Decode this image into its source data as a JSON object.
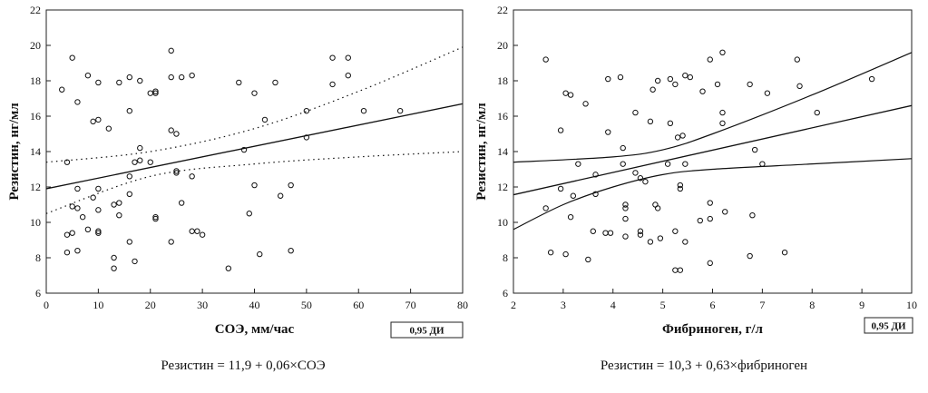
{
  "chart_data": [
    {
      "type": "scatter",
      "xlabel": "СОЭ, мм/час",
      "ylabel": "Резистин, нг/мл",
      "xlim": [
        0,
        80
      ],
      "ylim": [
        6,
        22
      ],
      "xticks": [
        "0",
        "10",
        "20",
        "30",
        "40",
        "50",
        "60",
        "70",
        "80"
      ],
      "yticks": [
        "6",
        "8",
        "10",
        "12",
        "14",
        "16",
        "18",
        "20",
        "22"
      ],
      "grid": false,
      "ci_label": "0,95 ДИ",
      "formula": "Резистин = 11,9 + 0,06×СОЭ",
      "regression": {
        "intercept": 11.9,
        "slope": 0.06,
        "x_range": [
          0,
          80
        ]
      },
      "ci_upper": {
        "x": [
          0,
          20,
          40,
          60,
          80
        ],
        "y": [
          13.4,
          14.0,
          15.3,
          17.4,
          19.9
        ]
      },
      "ci_lower": {
        "x": [
          0,
          20,
          40,
          60,
          80
        ],
        "y": [
          10.5,
          12.6,
          13.3,
          13.7,
          14.0
        ]
      },
      "points": [
        [
          3,
          17.5
        ],
        [
          5,
          19.3
        ],
        [
          8,
          18.3
        ],
        [
          10,
          17.9
        ],
        [
          14,
          17.9
        ],
        [
          16,
          18.2
        ],
        [
          18,
          18.0
        ],
        [
          20,
          17.3
        ],
        [
          21,
          17.4
        ],
        [
          21,
          17.3
        ],
        [
          24,
          19.7
        ],
        [
          24,
          18.2
        ],
        [
          26,
          18.2
        ],
        [
          28,
          18.3
        ],
        [
          37,
          17.9
        ],
        [
          40,
          17.3
        ],
        [
          44,
          17.9
        ],
        [
          55,
          19.3
        ],
        [
          58,
          19.3
        ],
        [
          55,
          17.8
        ],
        [
          58,
          18.3
        ],
        [
          6,
          16.8
        ],
        [
          9,
          15.7
        ],
        [
          10,
          15.8
        ],
        [
          12,
          15.3
        ],
        [
          16,
          16.3
        ],
        [
          18,
          14.2
        ],
        [
          24,
          15.2
        ],
        [
          25,
          15.0
        ],
        [
          38,
          14.1
        ],
        [
          42,
          15.8
        ],
        [
          50,
          16.3
        ],
        [
          50,
          14.8
        ],
        [
          61,
          16.3
        ],
        [
          68,
          16.3
        ],
        [
          4,
          13.4
        ],
        [
          17,
          13.4
        ],
        [
          18,
          13.5
        ],
        [
          20,
          13.4
        ],
        [
          25,
          12.9
        ],
        [
          25,
          12.8
        ],
        [
          28,
          12.6
        ],
        [
          40,
          12.1
        ],
        [
          45,
          11.5
        ],
        [
          47,
          12.1
        ],
        [
          6,
          11.9
        ],
        [
          10,
          11.9
        ],
        [
          16,
          12.6
        ],
        [
          16,
          11.6
        ],
        [
          5,
          10.9
        ],
        [
          6,
          10.8
        ],
        [
          9,
          11.4
        ],
        [
          7,
          10.3
        ],
        [
          10,
          10.7
        ],
        [
          13,
          11.0
        ],
        [
          14,
          11.1
        ],
        [
          21,
          10.3
        ],
        [
          21,
          10.2
        ],
        [
          26,
          11.1
        ],
        [
          39,
          10.5
        ],
        [
          4,
          9.3
        ],
        [
          5,
          9.4
        ],
        [
          8,
          9.6
        ],
        [
          10,
          9.5
        ],
        [
          10,
          9.4
        ],
        [
          14,
          10.4
        ],
        [
          16,
          8.9
        ],
        [
          24,
          8.9
        ],
        [
          28,
          9.5
        ],
        [
          29,
          9.5
        ],
        [
          30,
          9.3
        ],
        [
          4,
          8.3
        ],
        [
          6,
          8.4
        ],
        [
          13,
          8.0
        ],
        [
          17,
          7.8
        ],
        [
          13,
          7.4
        ],
        [
          35,
          7.4
        ],
        [
          41,
          8.2
        ],
        [
          47,
          8.4
        ]
      ]
    },
    {
      "type": "scatter",
      "xlabel": "Фибриноген, г/л",
      "ylabel": "Резистин, нг/мл",
      "xlim": [
        2,
        10
      ],
      "ylim": [
        6,
        22
      ],
      "xticks": [
        "2",
        "3",
        "4",
        "5",
        "6",
        "7",
        "8",
        "9",
        "10"
      ],
      "yticks": [
        "6",
        "8",
        "10",
        "12",
        "14",
        "16",
        "18",
        "20",
        "22"
      ],
      "grid": false,
      "ci_label": "0,95 ДИ",
      "formula": "Резистин = 10,3 + 0,63×фибриноген",
      "regression": {
        "intercept": 10.3,
        "slope": 0.63,
        "x_range": [
          2,
          10
        ]
      },
      "ci_upper": {
        "x": [
          2,
          4,
          5,
          6,
          8,
          10
        ],
        "y": [
          13.4,
          13.7,
          14.1,
          15.0,
          17.2,
          19.6
        ]
      },
      "ci_lower": {
        "x": [
          2,
          3,
          4,
          5,
          6,
          8,
          10
        ],
        "y": [
          9.6,
          11.0,
          12.0,
          12.7,
          13.0,
          13.3,
          13.6
        ]
      },
      "points": [
        [
          2.65,
          19.2
        ],
        [
          3.05,
          17.3
        ],
        [
          3.15,
          17.2
        ],
        [
          3.45,
          16.7
        ],
        [
          3.9,
          18.1
        ],
        [
          4.15,
          18.2
        ],
        [
          4.8,
          17.5
        ],
        [
          4.9,
          18.0
        ],
        [
          5.15,
          18.1
        ],
        [
          5.25,
          17.8
        ],
        [
          5.45,
          18.3
        ],
        [
          5.55,
          18.2
        ],
        [
          5.95,
          19.2
        ],
        [
          6.2,
          19.6
        ],
        [
          6.1,
          17.8
        ],
        [
          6.75,
          17.8
        ],
        [
          7.1,
          17.3
        ],
        [
          7.7,
          19.2
        ],
        [
          7.75,
          17.7
        ],
        [
          9.2,
          18.1
        ],
        [
          2.95,
          15.2
        ],
        [
          3.9,
          15.1
        ],
        [
          4.45,
          16.2
        ],
        [
          4.75,
          15.7
        ],
        [
          5.15,
          15.6
        ],
        [
          5.3,
          14.8
        ],
        [
          5.4,
          14.9
        ],
        [
          5.8,
          17.4
        ],
        [
          6.2,
          16.2
        ],
        [
          6.2,
          15.6
        ],
        [
          8.1,
          16.2
        ],
        [
          6.85,
          14.1
        ],
        [
          3.3,
          13.3
        ],
        [
          3.65,
          12.7
        ],
        [
          4.2,
          13.3
        ],
        [
          4.2,
          14.2
        ],
        [
          4.45,
          12.8
        ],
        [
          4.55,
          12.5
        ],
        [
          5.1,
          13.3
        ],
        [
          5.35,
          12.1
        ],
        [
          5.35,
          11.9
        ],
        [
          5.45,
          13.3
        ],
        [
          7.0,
          13.3
        ],
        [
          2.95,
          11.9
        ],
        [
          3.2,
          11.5
        ],
        [
          3.65,
          11.6
        ],
        [
          4.25,
          11.0
        ],
        [
          4.25,
          10.8
        ],
        [
          4.25,
          10.2
        ],
        [
          4.65,
          12.3
        ],
        [
          4.85,
          11.0
        ],
        [
          4.9,
          10.8
        ],
        [
          5.75,
          10.1
        ],
        [
          5.95,
          11.1
        ],
        [
          5.95,
          10.2
        ],
        [
          6.25,
          10.6
        ],
        [
          6.8,
          10.4
        ],
        [
          2.65,
          10.8
        ],
        [
          3.15,
          10.3
        ],
        [
          3.6,
          9.5
        ],
        [
          3.85,
          9.4
        ],
        [
          3.95,
          9.4
        ],
        [
          4.25,
          9.2
        ],
        [
          4.55,
          9.5
        ],
        [
          4.55,
          9.3
        ],
        [
          4.75,
          8.9
        ],
        [
          4.95,
          9.1
        ],
        [
          5.25,
          9.5
        ],
        [
          5.45,
          8.9
        ],
        [
          2.75,
          8.3
        ],
        [
          3.05,
          8.2
        ],
        [
          3.5,
          7.9
        ],
        [
          5.25,
          7.3
        ],
        [
          5.35,
          7.3
        ],
        [
          5.95,
          7.7
        ],
        [
          6.75,
          8.1
        ],
        [
          7.45,
          8.3
        ]
      ]
    }
  ]
}
